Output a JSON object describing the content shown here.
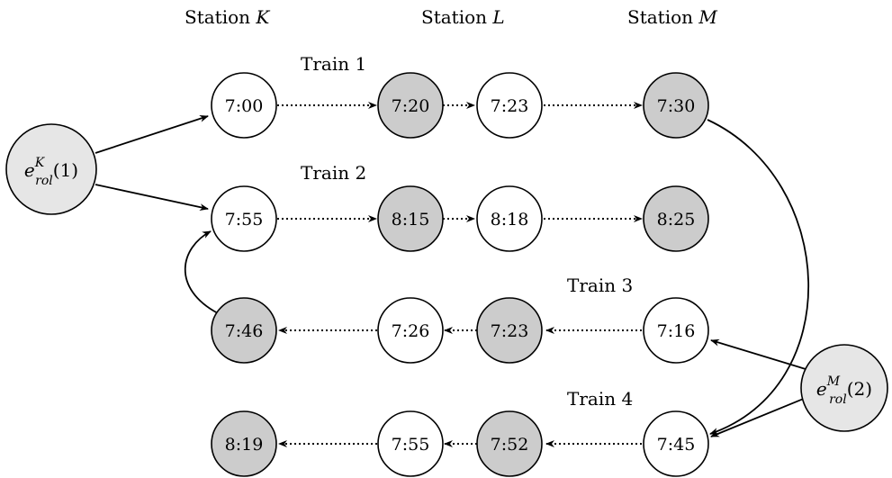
{
  "stations": [
    {
      "prefix": "Station ",
      "letter": "K"
    },
    {
      "prefix": "Station ",
      "letter": "L"
    },
    {
      "prefix": "Station ",
      "letter": "M"
    }
  ],
  "trains": [
    "Train 1",
    "Train 2",
    "Train 3",
    "Train 4"
  ],
  "rows": [
    {
      "times": [
        "7:00",
        "7:20",
        "7:23",
        "7:30"
      ],
      "shaded": [
        false,
        true,
        false,
        true
      ]
    },
    {
      "times": [
        "7:55",
        "8:15",
        "8:18",
        "8:25"
      ],
      "shaded": [
        false,
        true,
        false,
        true
      ]
    },
    {
      "times": [
        "7:46",
        "7:26",
        "7:23",
        "7:16"
      ],
      "shaded": [
        true,
        false,
        true,
        false
      ]
    },
    {
      "times": [
        "8:19",
        "7:55",
        "7:52",
        "7:45"
      ],
      "shaded": [
        true,
        false,
        true,
        false
      ]
    }
  ],
  "rolling_stock": [
    {
      "base": "e",
      "sup": "K",
      "sub": "rol",
      "arg": "(1)"
    },
    {
      "base": "e",
      "sup": "M",
      "sub": "rol",
      "arg": "(2)"
    }
  ],
  "colors": {
    "shaded_event": "#cccccc",
    "rolling_stock_node": "#e6e6e6",
    "plain_event": "#ffffff"
  }
}
